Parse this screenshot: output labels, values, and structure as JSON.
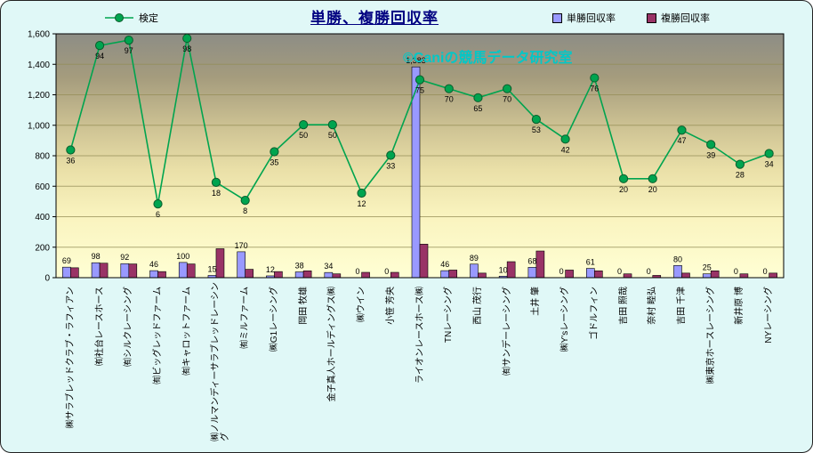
{
  "title": "単勝、複勝回収率",
  "watermark": "©Caniの競馬データ研究室",
  "legend": {
    "kentei": "検定",
    "win": "単勝回収率",
    "place": "複勝回収率"
  },
  "colors": {
    "title": "#000080",
    "watermark": "#00C8C8",
    "frame_background": "#E0F8F7",
    "frame_border": "#222222",
    "plot_border": "#000000",
    "gridline": "#948d57"
  },
  "y_axis": {
    "min": 0,
    "max": 1600,
    "step": 200,
    "tick_labels": [
      "0",
      "200",
      "400",
      "600",
      "800",
      "1,000",
      "1,200",
      "1,400",
      "1,600"
    ]
  },
  "chart_data": {
    "type": "bar",
    "subtype": "combo-bar-line",
    "title": "単勝、複勝回収率",
    "categories": [
      "㈱サラブレッドクラブ・ラフィアン",
      "㈲社台レースホース",
      "㈲シルクレーシング",
      "㈲ビッグレッドファーム",
      "㈲キャロットファーム",
      "㈱ノルマンディーサラブレッドレーシン\nグ",
      "㈲ミルファーム",
      "㈱G1レーシング",
      "岡田 牧雄",
      "金子真人ホールディングス㈱",
      "㈱ウイン",
      "小笹 芳央",
      "ライオンレースホース㈱",
      "TNレーシング",
      "西山 茂行",
      "㈲サンデーレーシング",
      "土井 肇",
      "㈱Y'sレーシング",
      "ゴドルフィン",
      "吉田 照哉",
      "奈村 睦弘",
      "吉田 千津",
      "㈱東京ホースレーシング",
      "新井原 博",
      "NYレーシング"
    ],
    "series": [
      {
        "name": "単勝回収率",
        "type": "bar",
        "color": "#9999FF",
        "values": [
          69,
          98,
          92,
          46,
          100,
          15,
          170,
          12,
          38,
          34,
          0,
          0,
          1383,
          46,
          89,
          10,
          68,
          0,
          61,
          0,
          0,
          80,
          25,
          0,
          0
        ]
      },
      {
        "name": "複勝回収率",
        "type": "bar",
        "color": "#993366",
        "values": [
          65,
          95,
          90,
          40,
          90,
          190,
          55,
          40,
          45,
          25,
          35,
          35,
          220,
          50,
          30,
          105,
          175,
          50,
          45,
          25,
          15,
          30,
          45,
          25,
          30
        ]
      },
      {
        "name": "検定",
        "type": "line",
        "color": "#00A44F",
        "marker": "circle",
        "axis": "secondary-hidden",
        "values": [
          36,
          94,
          97,
          6,
          98,
          18,
          8,
          35,
          50,
          50,
          12,
          33,
          75,
          70,
          65,
          70,
          53,
          42,
          76,
          20,
          20,
          47,
          39,
          28,
          34
        ]
      }
    ],
    "ylim": [
      0,
      1600
    ],
    "ytick_step": 200,
    "grid": true,
    "legend_position": "top",
    "bar_labels_series": "単勝回収率",
    "line_labels": true,
    "kentei_transform": {
      "offset": 413,
      "scale": 11.81
    },
    "plot_gradient": [
      {
        "offset": "0%",
        "color": "#8d8d85"
      },
      {
        "offset": "18%",
        "color": "#a59c7d"
      },
      {
        "offset": "38%",
        "color": "#cdc293"
      },
      {
        "offset": "56%",
        "color": "#eae0a8"
      },
      {
        "offset": "74%",
        "color": "#f9f3be"
      },
      {
        "offset": "100%",
        "color": "#ffffd4"
      }
    ]
  }
}
